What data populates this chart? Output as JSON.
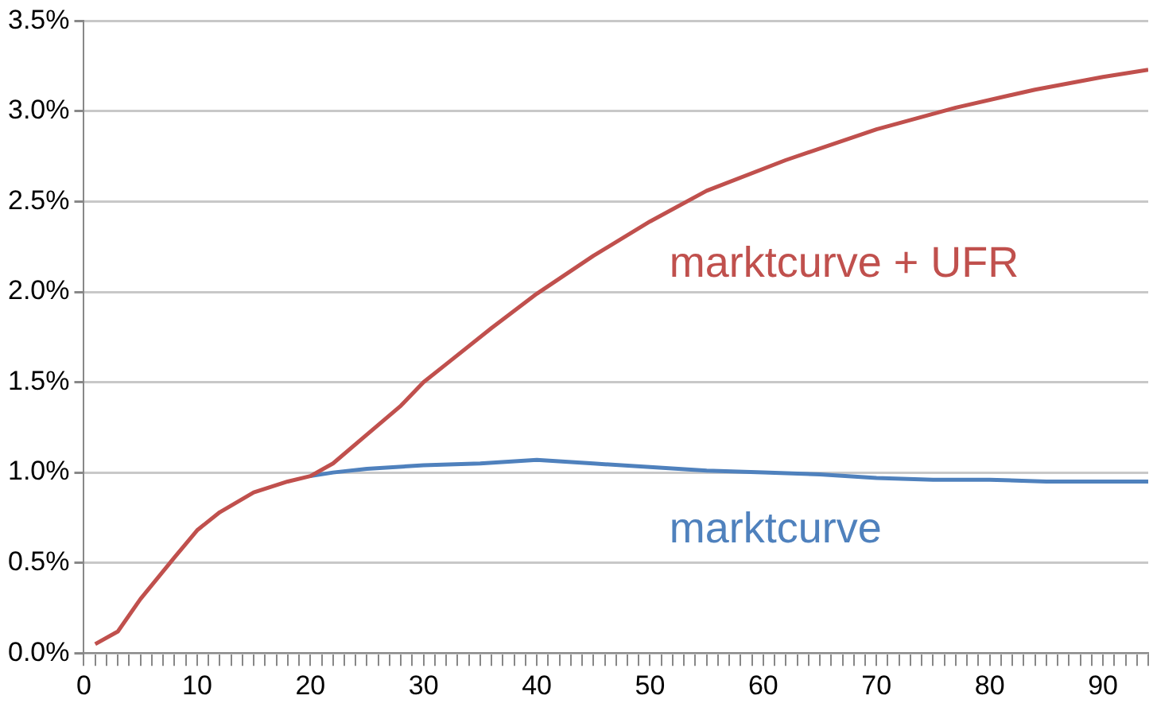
{
  "chart_data": {
    "type": "line",
    "grid": "y",
    "legend": false,
    "marker": "none",
    "line_style": "solid",
    "xlim": [
      0,
      94
    ],
    "xticks": [
      0,
      {
        "value": 1,
        "label": null
      },
      {
        "value": 2,
        "label": null
      },
      {
        "value": 3,
        "label": null
      },
      {
        "value": 4,
        "label": null
      },
      {
        "value": 5,
        "label": null
      },
      {
        "value": 6,
        "label": null
      },
      {
        "value": 7,
        "label": null
      },
      {
        "value": 8,
        "label": null
      },
      {
        "value": 9,
        "label": null
      },
      10,
      {
        "value": 11,
        "label": null
      },
      {
        "value": 12,
        "label": null
      },
      {
        "value": 13,
        "label": null
      },
      {
        "value": 14,
        "label": null
      },
      {
        "value": 15,
        "label": null
      },
      {
        "value": 16,
        "label": null
      },
      {
        "value": 17,
        "label": null
      },
      {
        "value": 18,
        "label": null
      },
      {
        "value": 19,
        "label": null
      },
      20,
      {
        "value": 21,
        "label": null
      },
      {
        "value": 22,
        "label": null
      },
      {
        "value": 23,
        "label": null
      },
      {
        "value": 24,
        "label": null
      },
      {
        "value": 25,
        "label": null
      },
      {
        "value": 26,
        "label": null
      },
      {
        "value": 27,
        "label": null
      },
      {
        "value": 28,
        "label": null
      },
      {
        "value": 29,
        "label": null
      },
      30,
      {
        "value": 31,
        "label": null
      },
      {
        "value": 32,
        "label": null
      },
      {
        "value": 33,
        "label": null
      },
      {
        "value": 34,
        "label": null
      },
      {
        "value": 35,
        "label": null
      },
      {
        "value": 36,
        "label": null
      },
      {
        "value": 37,
        "label": null
      },
      {
        "value": 38,
        "label": null
      },
      {
        "value": 39,
        "label": null
      },
      40,
      {
        "value": 41,
        "label": null
      },
      {
        "value": 42,
        "label": null
      },
      {
        "value": 43,
        "label": null
      },
      {
        "value": 44,
        "label": null
      },
      {
        "value": 45,
        "label": null
      },
      {
        "value": 46,
        "label": null
      },
      {
        "value": 47,
        "label": null
      },
      {
        "value": 48,
        "label": null
      },
      {
        "value": 49,
        "label": null
      },
      50,
      {
        "value": 51,
        "label": null
      },
      {
        "value": 52,
        "label": null
      },
      {
        "value": 53,
        "label": null
      },
      {
        "value": 54,
        "label": null
      },
      {
        "value": 55,
        "label": null
      },
      {
        "value": 56,
        "label": null
      },
      {
        "value": 57,
        "label": null
      },
      {
        "value": 58,
        "label": null
      },
      {
        "value": 59,
        "label": null
      },
      60,
      {
        "value": 61,
        "label": null
      },
      {
        "value": 62,
        "label": null
      },
      {
        "value": 63,
        "label": null
      },
      {
        "value": 64,
        "label": null
      },
      {
        "value": 65,
        "label": null
      },
      {
        "value": 66,
        "label": null
      },
      {
        "value": 67,
        "label": null
      },
      {
        "value": 68,
        "label": null
      },
      {
        "value": 69,
        "label": null
      },
      70,
      {
        "value": 71,
        "label": null
      },
      {
        "value": 72,
        "label": null
      },
      {
        "value": 73,
        "label": null
      },
      {
        "value": 74,
        "label": null
      },
      {
        "value": 75,
        "label": null
      },
      {
        "value": 76,
        "label": null
      },
      {
        "value": 77,
        "label": null
      },
      {
        "value": 78,
        "label": null
      },
      {
        "value": 79,
        "label": null
      },
      80,
      {
        "value": 81,
        "label": null
      },
      {
        "value": 82,
        "label": null
      },
      {
        "value": 83,
        "label": null
      },
      {
        "value": 84,
        "label": null
      },
      {
        "value": 85,
        "label": null
      },
      {
        "value": 86,
        "label": null
      },
      {
        "value": 87,
        "label": null
      },
      {
        "value": 88,
        "label": null
      },
      {
        "value": 89,
        "label": null
      },
      90,
      {
        "value": 91,
        "label": null
      },
      {
        "value": 92,
        "label": null
      },
      {
        "value": 93,
        "label": null
      },
      {
        "value": 94,
        "label": null
      }
    ],
    "ylim": [
      0,
      3.5
    ],
    "yticks": [
      {
        "value": 0,
        "label": "0.0%"
      },
      {
        "value": 0.5,
        "label": "0.5%"
      },
      {
        "value": 1,
        "label": "1.0%"
      },
      {
        "value": 1.5,
        "label": "1.5%"
      },
      {
        "value": 2,
        "label": "2.0%"
      },
      {
        "value": 2.5,
        "label": "2.5%"
      },
      {
        "value": 3,
        "label": "3.0%"
      },
      {
        "value": 3.5,
        "label": "3.5%"
      }
    ],
    "series": [
      {
        "name": "marktcurve + UFR",
        "color": "#c0504d",
        "x": [
          1,
          3,
          5,
          8,
          10,
          12,
          15,
          18,
          20,
          22,
          25,
          28,
          30,
          32,
          36,
          40,
          45,
          50,
          55,
          62,
          70,
          77,
          84,
          90,
          94
        ],
        "values": [
          0.05,
          0.12,
          0.3,
          0.53,
          0.68,
          0.78,
          0.89,
          0.95,
          0.98,
          1.05,
          1.21,
          1.37,
          1.5,
          1.6,
          1.8,
          1.99,
          2.2,
          2.39,
          2.56,
          2.73,
          2.9,
          3.02,
          3.12,
          3.19,
          3.23
        ]
      },
      {
        "name": "marktcurve",
        "color": "#4f81bd",
        "x": [
          20,
          22,
          25,
          30,
          35,
          40,
          45,
          50,
          55,
          60,
          65,
          70,
          75,
          80,
          85,
          90,
          94
        ],
        "values": [
          0.98,
          1.0,
          1.02,
          1.04,
          1.05,
          1.07,
          1.05,
          1.03,
          1.01,
          1.0,
          0.99,
          0.97,
          0.96,
          0.96,
          0.95,
          0.95,
          0.95
        ]
      }
    ]
  }
}
